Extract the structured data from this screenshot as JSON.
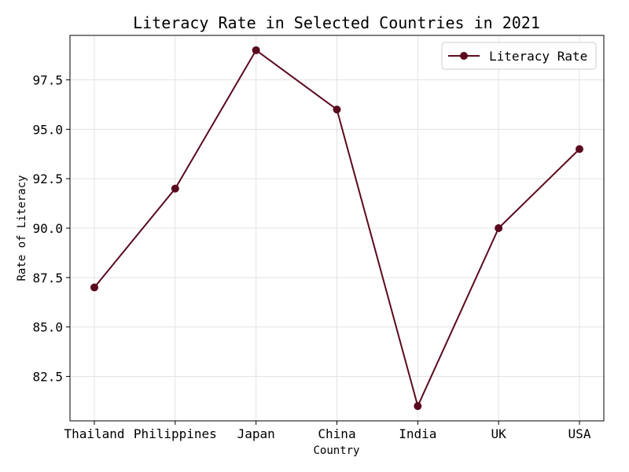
{
  "chart_data": {
    "type": "line",
    "title": "Literacy Rate in Selected Countries in 2021",
    "xlabel": "Country",
    "ylabel": "Rate of Literacy",
    "categories": [
      "Thailand",
      "Philippines",
      "Japan",
      "China",
      "India",
      "UK",
      "USA"
    ],
    "series": [
      {
        "name": "Literacy Rate",
        "values": [
          87,
          92,
          99,
          96,
          81,
          90,
          94
        ],
        "color": "#5a0a1e"
      }
    ],
    "ylim": [
      80.25,
      99.75
    ],
    "yticks": [
      "82.5",
      "85.0",
      "87.5",
      "90.0",
      "92.5",
      "95.0",
      "97.5"
    ],
    "grid": true,
    "legend_position": "top-right"
  }
}
